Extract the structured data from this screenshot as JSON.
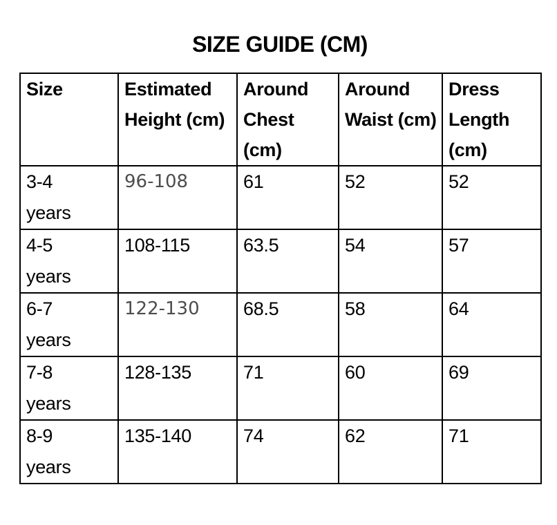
{
  "title": "SIZE GUIDE (CM)",
  "table": {
    "headers": [
      "Size",
      "Estimated Height (cm)",
      "Around Chest (cm)",
      "Around Waist (cm)",
      "Dress Length (cm)"
    ],
    "rows": [
      {
        "size": "3-4\nyears",
        "estimated_height": "96-108",
        "around_chest": "61",
        "around_waist": "52",
        "dress_length": "52"
      },
      {
        "size": "4-5\nyears",
        "estimated_height": "108-115",
        "around_chest": "63.5",
        "around_waist": "54",
        "dress_length": "57"
      },
      {
        "size": "6-7\nyears",
        "estimated_height": "122-130",
        "around_chest": "68.5",
        "around_waist": "58",
        "dress_length": "64"
      },
      {
        "size": "7-8\nyears",
        "estimated_height": "128-135",
        "around_chest": "71",
        "around_waist": "60",
        "dress_length": "69"
      },
      {
        "size": "8-9\nyears",
        "estimated_height": "135-140",
        "around_chest": "74",
        "around_waist": "62",
        "dress_length": "71"
      }
    ],
    "edited_value_rows": [
      0,
      2
    ]
  },
  "colors": {
    "background": "#ffffff",
    "text": "#000000",
    "border": "#000000",
    "edited_value_text": "#4d4d4d"
  }
}
